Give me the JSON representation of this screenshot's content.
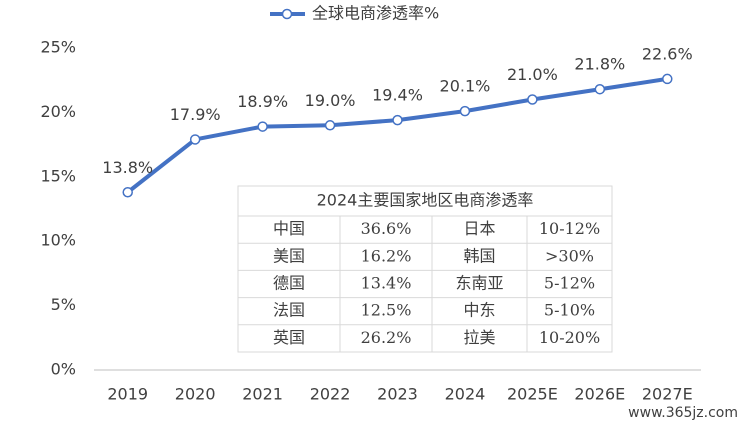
{
  "chart_data": {
    "type": "line",
    "categories": [
      "2019",
      "2020",
      "2021",
      "2022",
      "2023",
      "2024",
      "2025E",
      "2026E",
      "2027E"
    ],
    "series": [
      {
        "name": "全球电商渗透率%",
        "color": "#4472c4",
        "values": [
          13.8,
          17.9,
          18.9,
          19.0,
          19.4,
          20.1,
          21.0,
          21.8,
          22.6
        ],
        "value_labels": [
          "13.8%",
          "17.9%",
          "18.9%",
          "19.0%",
          "19.4%",
          "20.1%",
          "21.0%",
          "21.8%",
          "22.6%"
        ]
      }
    ],
    "ylim": [
      0,
      25
    ],
    "yticks": [
      {
        "value": 0,
        "label": "0%"
      },
      {
        "value": 5,
        "label": "5%"
      },
      {
        "value": 10,
        "label": "10%"
      },
      {
        "value": 15,
        "label": "15%"
      },
      {
        "value": 20,
        "label": "20%"
      },
      {
        "value": 25,
        "label": "25%"
      }
    ],
    "grid": false,
    "legend": "top"
  },
  "table": {
    "title": "2024主要国家地区电商渗透率",
    "rows": [
      [
        "中国",
        "36.6%",
        "日本",
        "10-12%"
      ],
      [
        "美国",
        "16.2%",
        "韩国",
        ">30%"
      ],
      [
        "德国",
        "13.4%",
        "东南亚",
        "5-12%"
      ],
      [
        "法国",
        "12.5%",
        "中东",
        "5-10%"
      ],
      [
        "英国",
        "26.2%",
        "拉美",
        "10-20%"
      ]
    ]
  },
  "watermark": "www.365jz.com"
}
